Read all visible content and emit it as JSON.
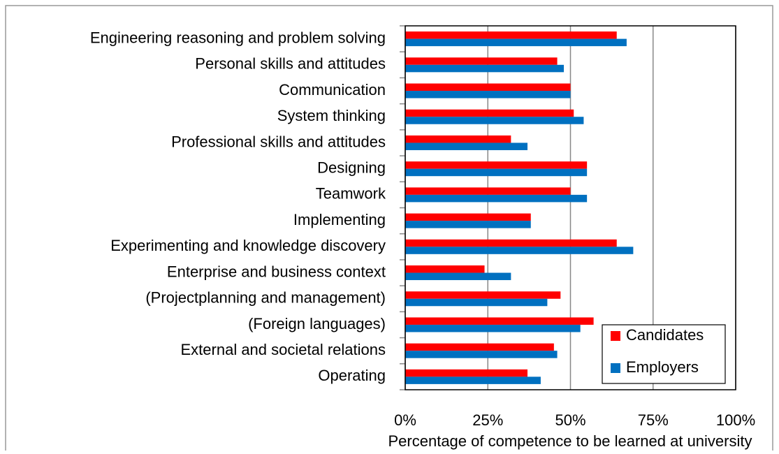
{
  "chart_data": {
    "type": "bar",
    "orientation": "horizontal",
    "x_label": "Percentage of competence to be learned at university",
    "categories": [
      "Engineering reasoning and problem solving",
      "Personal skills and attitudes",
      "Communication",
      "System thinking",
      "Professional skills and attitudes",
      "Designing",
      "Teamwork",
      "Implementing",
      "Experimenting and knowledge discovery",
      "Enterprise and business context",
      "(Projectplanning and management)",
      "(Foreign languages)",
      "External and societal relations",
      "Operating"
    ],
    "series": [
      {
        "name": "Candidates",
        "color": "#ff0000",
        "values": [
          64,
          46,
          50,
          51,
          32,
          55,
          50,
          38,
          64,
          24,
          47,
          57,
          45,
          37
        ]
      },
      {
        "name": "Employers",
        "color": "#0070c0",
        "values": [
          67,
          48,
          50,
          54,
          37,
          55,
          55,
          38,
          69,
          32,
          43,
          53,
          46,
          41
        ]
      }
    ],
    "xlim": [
      0,
      100
    ],
    "xticks": [
      {
        "value": 0,
        "label": "0%"
      },
      {
        "value": 25,
        "label": "25%"
      },
      {
        "value": 50,
        "label": "50%"
      },
      {
        "value": 75,
        "label": "75%"
      },
      {
        "value": 100,
        "label": "100%"
      }
    ],
    "grid": true,
    "legend": "lower right"
  }
}
